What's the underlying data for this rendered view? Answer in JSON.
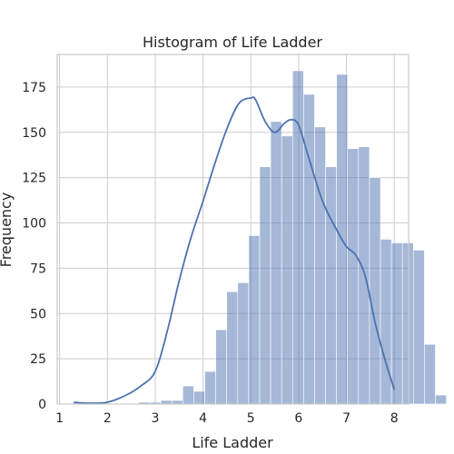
{
  "chart_data": {
    "type": "bar",
    "title": "Histogram of Life Ladder",
    "xlabel": "Life Ladder",
    "ylabel": "Frequency",
    "xlim": [
      0.95,
      8.3
    ],
    "ylim": [
      0,
      193
    ],
    "xticks": [
      1,
      2,
      3,
      4,
      5,
      6,
      7,
      8
    ],
    "yticks": [
      0,
      25,
      50,
      75,
      100,
      125,
      150,
      175
    ],
    "grid": true,
    "bin_start": 1.28,
    "bin_width": 0.2297,
    "values": [
      1,
      0,
      0,
      0,
      0,
      0,
      1,
      1,
      2,
      2,
      10,
      7,
      18,
      41,
      62,
      67,
      93,
      131,
      156,
      148,
      184,
      171,
      153,
      131,
      182,
      141,
      142,
      125,
      91,
      89,
      89,
      85,
      33,
      5
    ],
    "kde": {
      "x": [
        1.3,
        1.6,
        2.0,
        2.4,
        2.7,
        3.0,
        3.25,
        3.5,
        3.75,
        4.0,
        4.25,
        4.5,
        4.75,
        5.0,
        5.1,
        5.3,
        5.5,
        5.7,
        5.85,
        6.0,
        6.2,
        6.5,
        6.8,
        7.0,
        7.2,
        7.4,
        7.6,
        7.8,
        8.0
      ],
      "y": [
        1,
        0.5,
        1,
        5,
        10,
        18,
        40,
        68,
        92,
        112,
        133,
        152,
        166,
        169,
        168,
        156,
        150,
        155,
        157,
        154,
        137,
        112,
        96,
        87,
        82,
        70,
        45,
        25,
        8
      ]
    }
  }
}
